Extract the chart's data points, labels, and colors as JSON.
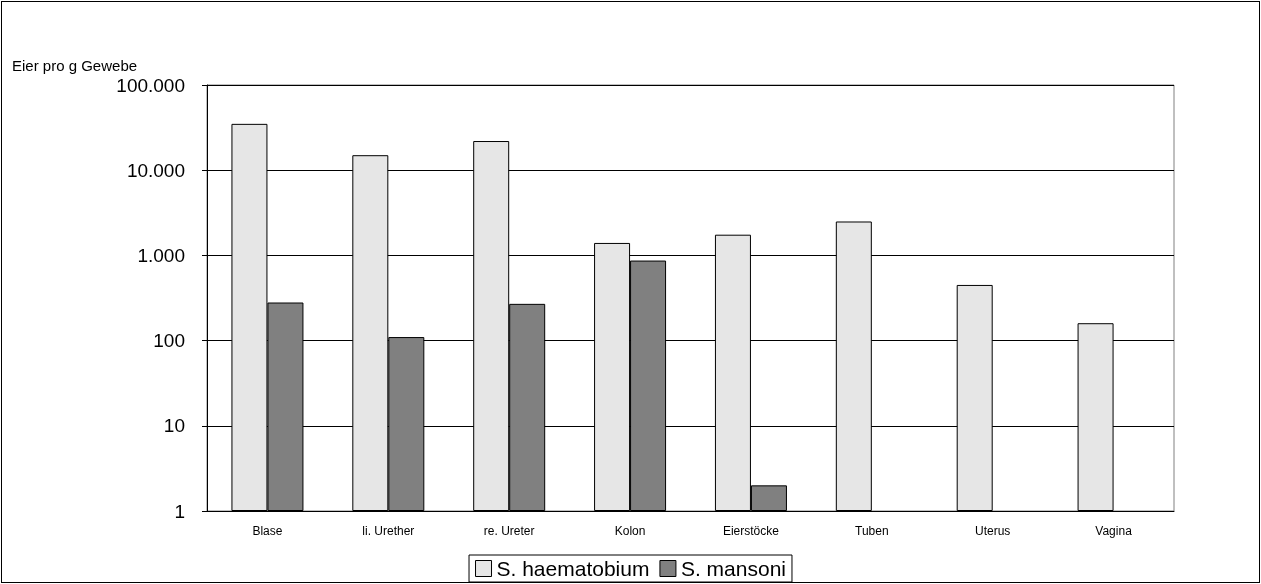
{
  "chart_data": {
    "type": "bar",
    "ylabel": "Eier pro g Gewebe",
    "categories": [
      "Blase",
      "li. Urether",
      "re. Ureter",
      "Kolon",
      "Eierstöcke",
      "Tuben",
      "Uterus",
      "Vagina"
    ],
    "series": [
      {
        "name": "S. haematobium",
        "color": "#e6e6e6",
        "values": [
          35000,
          15000,
          22000,
          1400,
          1750,
          2500,
          450,
          160
        ]
      },
      {
        "name": "S. mansoni",
        "color": "#808080",
        "values": [
          280,
          110,
          270,
          870,
          2,
          null,
          null,
          null
        ]
      }
    ],
    "log": "y",
    "ylim": [
      1,
      100000
    ],
    "yticks": [
      1,
      10,
      100,
      {
        "value": 1000,
        "label": "1.000"
      },
      {
        "value": 10000,
        "label": "10.000"
      },
      {
        "value": 100000,
        "label": "100.000"
      }
    ],
    "grid": "y",
    "legend": "bottom"
  }
}
